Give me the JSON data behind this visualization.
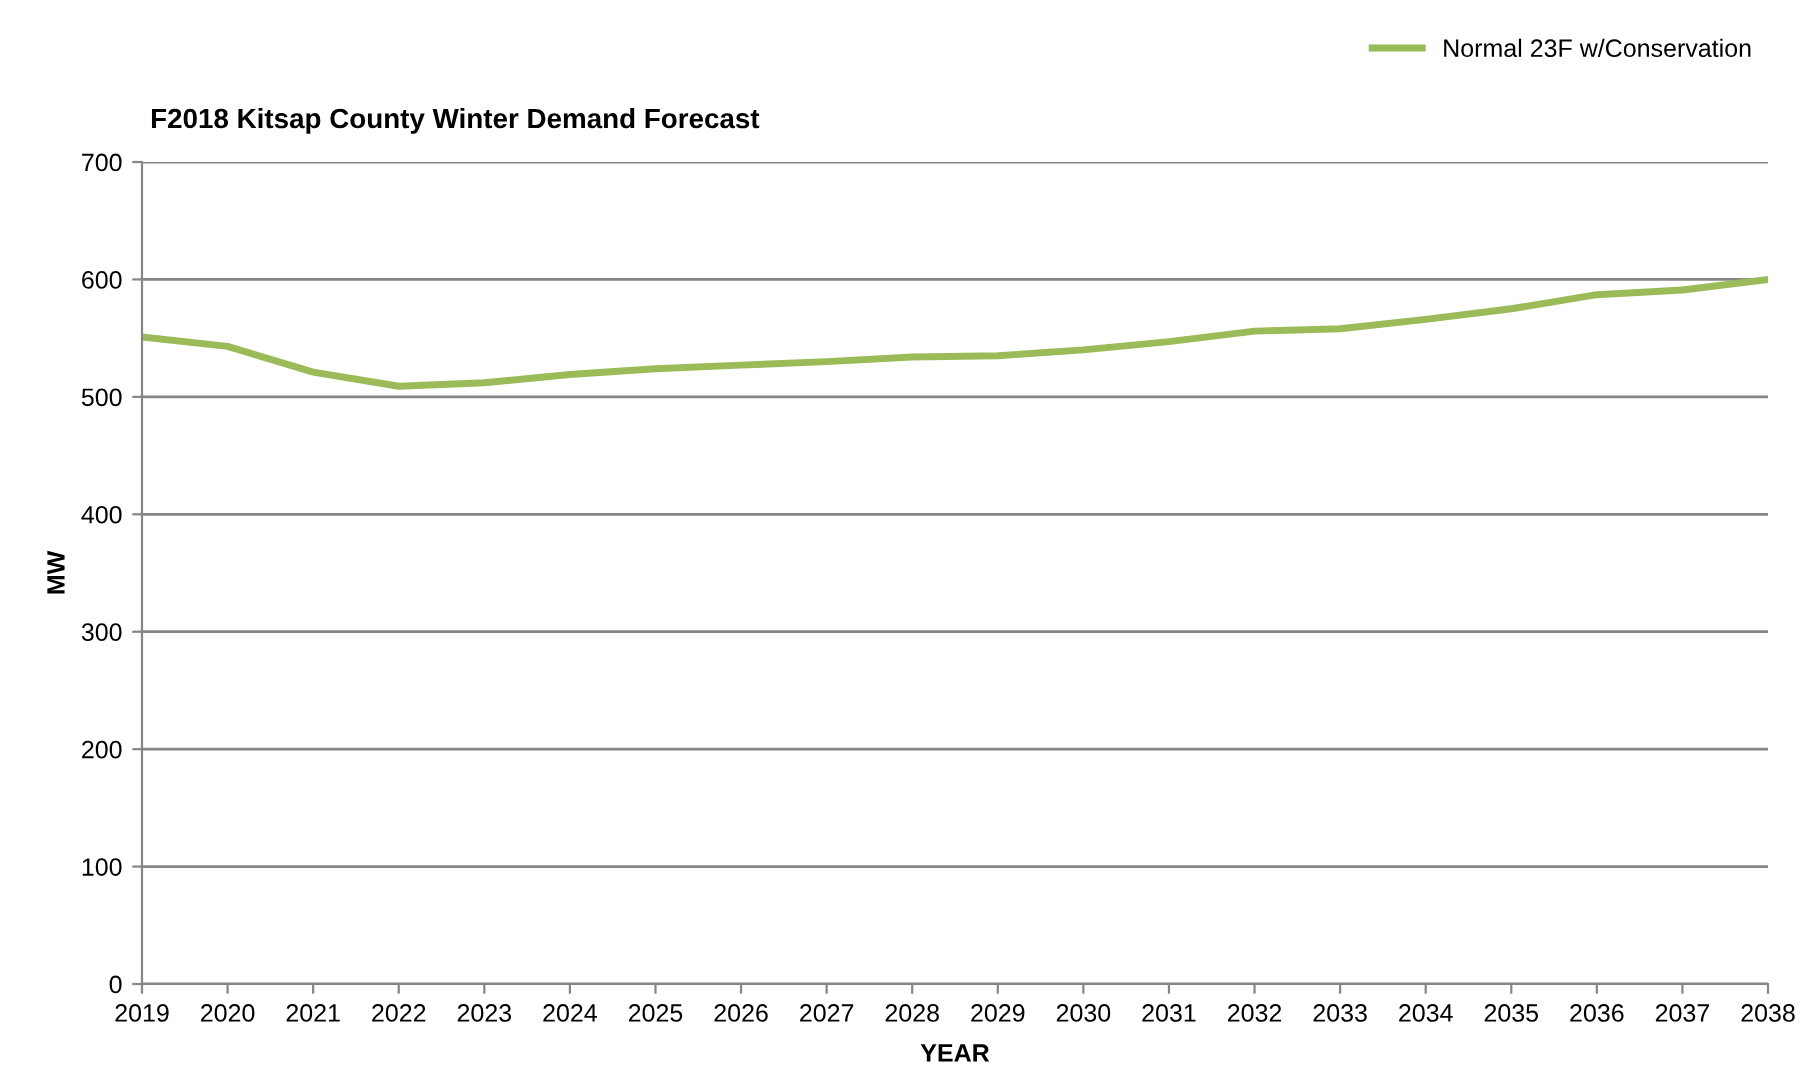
{
  "chart_data": {
    "type": "line",
    "title": "F2018 Kitsap County Winter Demand Forecast",
    "xlabel": "YEAR",
    "ylabel": "MW",
    "categories": [
      "2019",
      "2020",
      "2021",
      "2022",
      "2023",
      "2024",
      "2025",
      "2026",
      "2027",
      "2028",
      "2029",
      "2030",
      "2031",
      "2032",
      "2033",
      "2034",
      "2035",
      "2036",
      "2037",
      "2038"
    ],
    "series": [
      {
        "name": "Normal 23F w/Conservation",
        "color": "#9bbb59",
        "values": [
          551,
          543,
          521,
          509,
          512,
          519,
          524,
          527,
          530,
          534,
          535,
          540,
          547,
          556,
          558,
          566,
          575,
          587,
          591,
          600
        ]
      }
    ],
    "ylim": [
      0,
      700
    ],
    "yticks": [
      0,
      100,
      200,
      300,
      400,
      500,
      600,
      700
    ],
    "grid": "y",
    "legend": "top right",
    "marker": "none",
    "line_style": "solid"
  }
}
